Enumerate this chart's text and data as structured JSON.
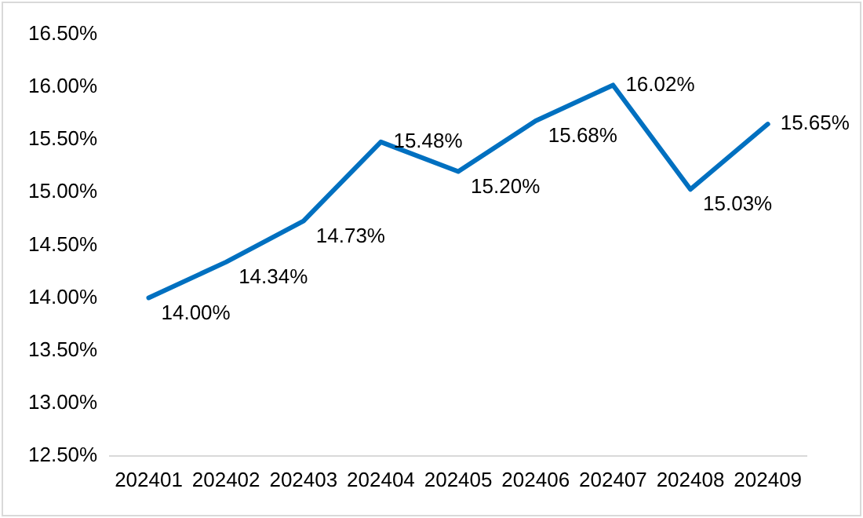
{
  "chart_data": {
    "type": "line",
    "categories": [
      "202401",
      "202402",
      "202403",
      "202404",
      "202405",
      "202406",
      "202407",
      "202408",
      "202409"
    ],
    "series": [
      {
        "color": "#0070c0",
        "values": [
          14.0,
          14.34,
          14.73,
          15.48,
          15.2,
          15.68,
          16.02,
          15.03,
          15.65
        ],
        "value_labels": [
          "14.00%",
          "14.34%",
          "14.73%",
          "15.48%",
          "15.20%",
          "15.68%",
          "16.02%",
          "15.03%",
          "15.65%"
        ]
      }
    ],
    "ylim": [
      12.5,
      16.5
    ],
    "yticks": [
      {
        "value": 12.5,
        "label": "12.50%"
      },
      {
        "value": 13,
        "label": "13.00%"
      },
      {
        "value": 13.5,
        "label": "13.50%"
      },
      {
        "value": 14,
        "label": "14.00%"
      },
      {
        "value": 14.5,
        "label": "14.50%"
      },
      {
        "value": 15,
        "label": "15.00%"
      },
      {
        "value": 15.5,
        "label": "15.50%"
      },
      {
        "value": 16,
        "label": "16.00%"
      },
      {
        "value": 16.5,
        "label": "16.50%"
      }
    ],
    "grid": false,
    "legend": false,
    "marker": "none",
    "line_style": "solid"
  }
}
